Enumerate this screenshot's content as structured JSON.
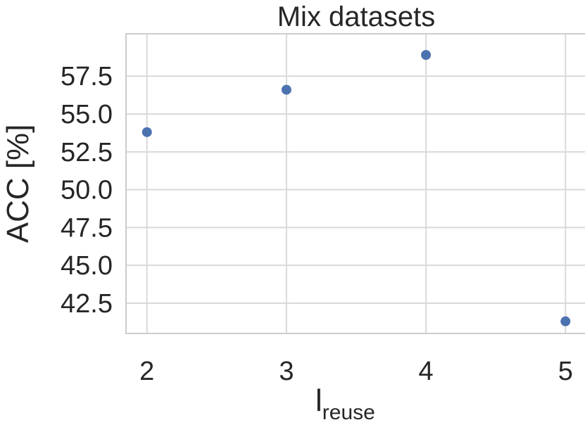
{
  "chart_data": {
    "type": "scatter",
    "title": "Mix datasets",
    "xlabel": "l",
    "xlabel_subscript": "reuse",
    "ylabel": "ACC [%]",
    "x": [
      2,
      3,
      4,
      5
    ],
    "y": [
      53.8,
      56.6,
      58.9,
      41.3
    ],
    "xticks": [
      "2",
      "3",
      "4",
      "5"
    ],
    "yticks": [
      "42.5",
      "45.0",
      "47.5",
      "50.0",
      "52.5",
      "55.0",
      "57.5"
    ],
    "xlim": [
      1.85,
      5.15
    ],
    "ylim": [
      40.5,
      60.3
    ],
    "grid": true,
    "marker_color": "#4c72b0"
  }
}
